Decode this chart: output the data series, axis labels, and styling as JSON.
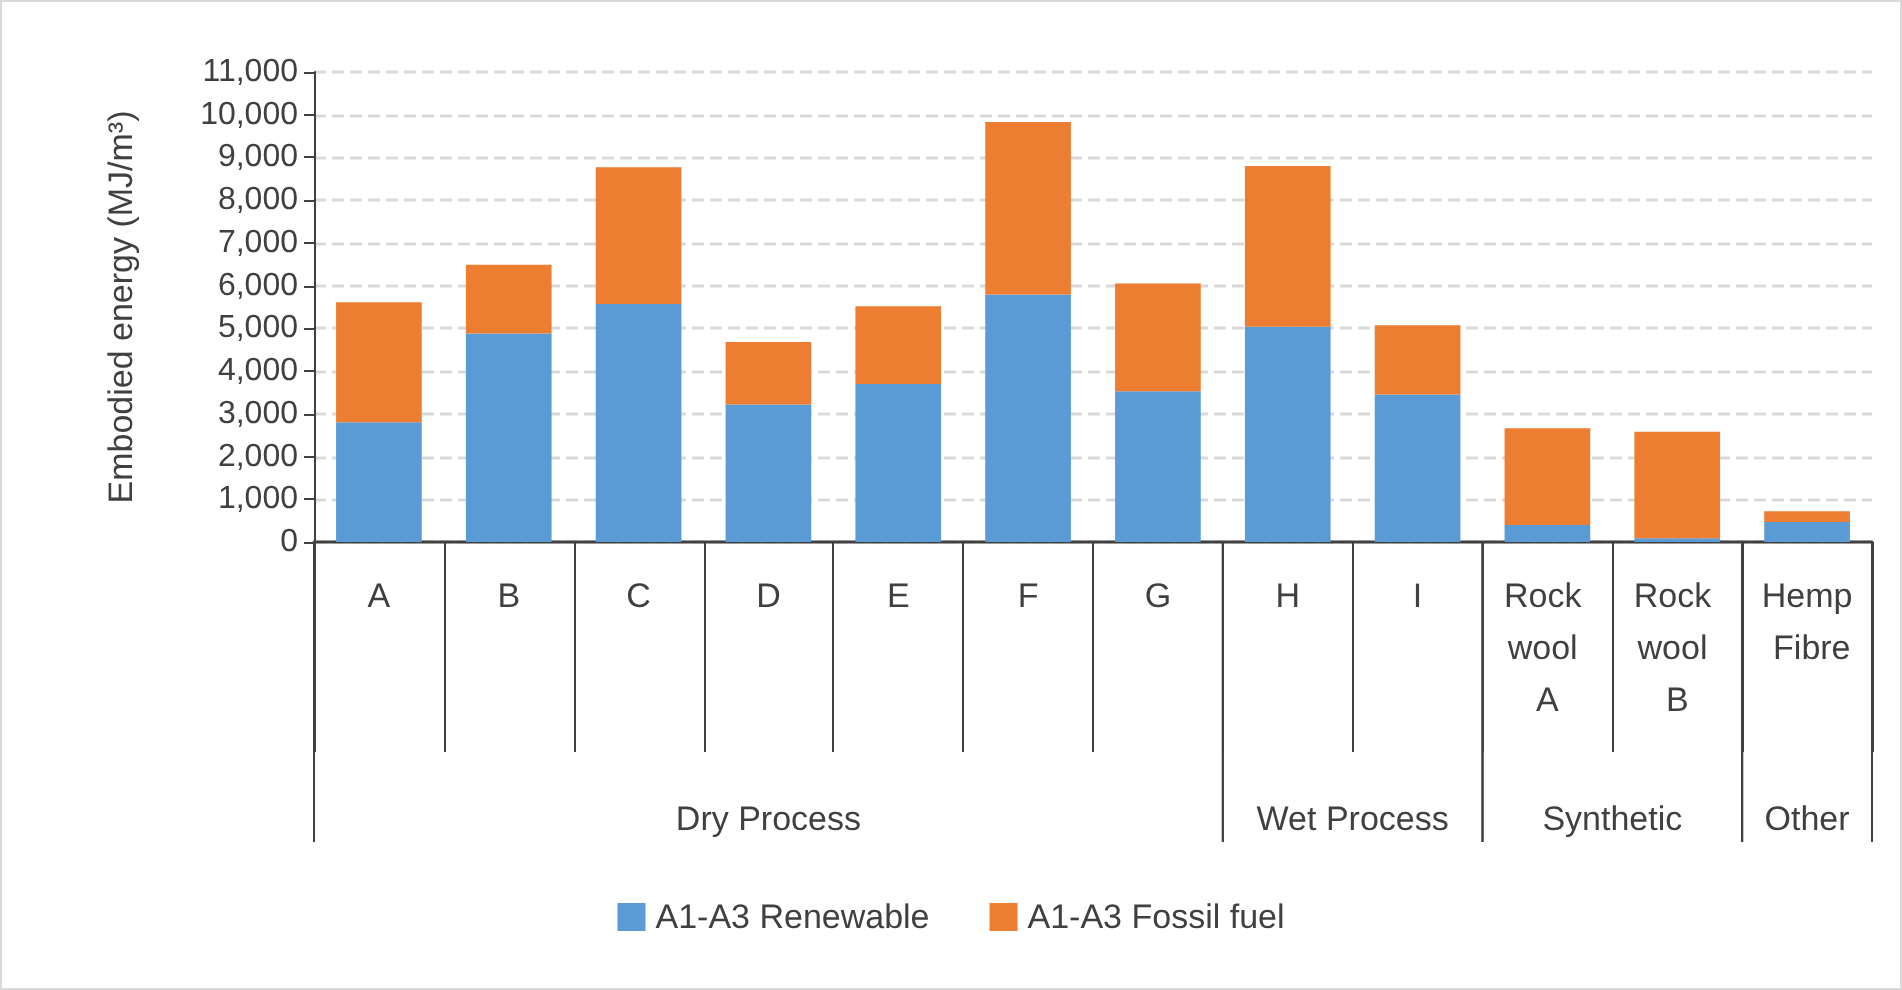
{
  "chart_data": {
    "type": "bar",
    "stacked": true,
    "ylabel": "Embodied energy (MJ/m³)",
    "categories": [
      "A",
      "B",
      "C",
      "D",
      "E",
      "F",
      "G",
      "H",
      "I",
      "Rock wool A",
      "Rock wool B",
      "Hemp Fibre"
    ],
    "series": [
      {
        "name": "A1-A3 Renewable",
        "color": "#5b9bd5",
        "values": [
          2800,
          4880,
          5570,
          3220,
          3700,
          5790,
          3530,
          5040,
          3450,
          400,
          90,
          470
        ]
      },
      {
        "name": "A1-A3 Fossil fuel",
        "color": "#ed7d31",
        "values": [
          2810,
          1610,
          3200,
          1460,
          1820,
          4040,
          2520,
          3760,
          1620,
          2260,
          2490,
          250
        ]
      }
    ],
    "ylim": [
      0,
      11000
    ],
    "yticks": [
      0,
      {
        "value": 1000,
        "label": "1,000"
      },
      {
        "value": 2000,
        "label": "2,000"
      },
      {
        "value": 3000,
        "label": "3,000"
      },
      {
        "value": 4000,
        "label": "4,000"
      },
      {
        "value": 5000,
        "label": "5,000"
      },
      {
        "value": 6000,
        "label": "6,000"
      },
      {
        "value": 7000,
        "label": "7,000"
      },
      {
        "value": 8000,
        "label": "8,000"
      },
      {
        "value": 9000,
        "label": "9,000"
      },
      {
        "value": 10000,
        "label": "10,000"
      },
      {
        "value": 11000,
        "label": "11,000"
      }
    ],
    "grid": "y",
    "legend": "bottom",
    "annotations": [
      "Dry Process",
      "Wet Process",
      "Synthetic",
      "Other"
    ]
  }
}
